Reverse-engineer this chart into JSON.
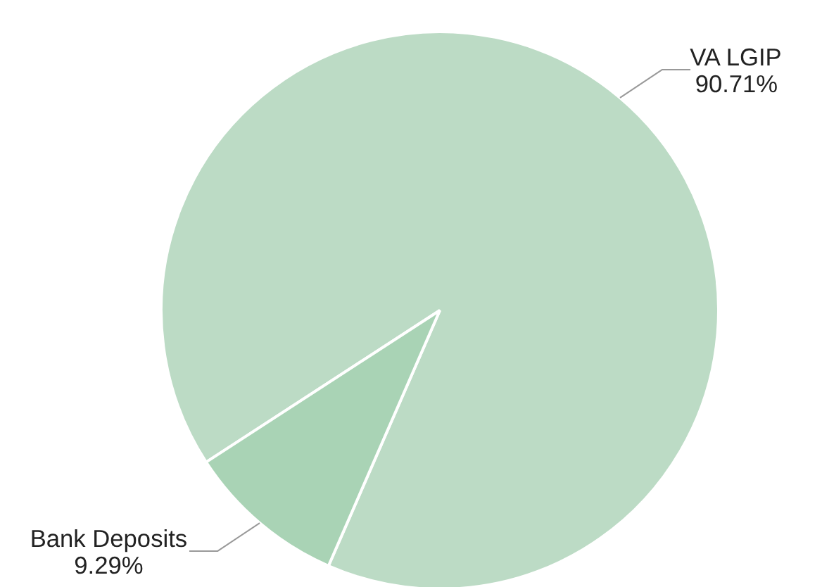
{
  "chart_data": {
    "type": "pie",
    "categories": [
      "VA LGIP",
      "Bank Deposits"
    ],
    "values": [
      90.71,
      9.29
    ],
    "colors": [
      "#bcdbc5",
      "#a9d3b5"
    ],
    "value_labels": [
      "90.71%",
      "9.29%"
    ]
  }
}
